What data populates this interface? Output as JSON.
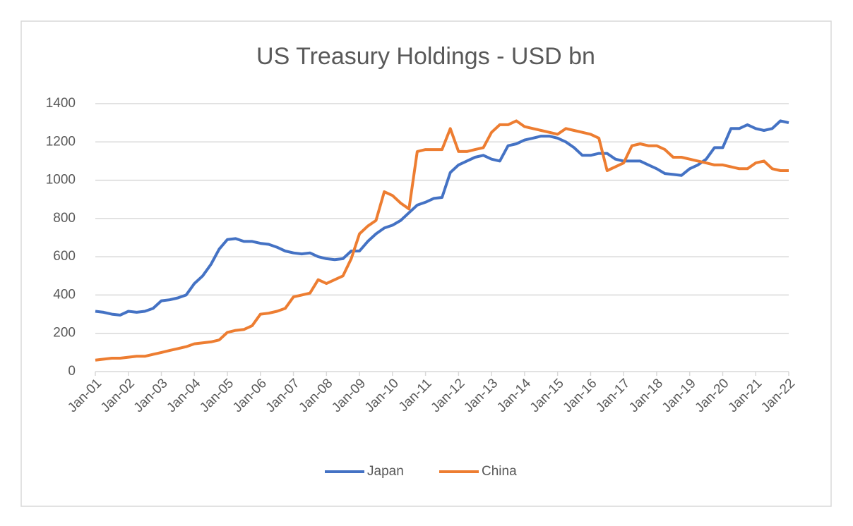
{
  "chart_data": {
    "type": "line",
    "title": "US Treasury Holdings - USD bn",
    "x": [
      "2001-01",
      "2001-04",
      "2001-07",
      "2001-10",
      "2002-01",
      "2002-04",
      "2002-07",
      "2002-10",
      "2003-01",
      "2003-04",
      "2003-07",
      "2003-10",
      "2004-01",
      "2004-04",
      "2004-07",
      "2004-10",
      "2005-01",
      "2005-04",
      "2005-07",
      "2005-10",
      "2006-01",
      "2006-04",
      "2006-07",
      "2006-10",
      "2007-01",
      "2007-04",
      "2007-07",
      "2007-10",
      "2008-01",
      "2008-04",
      "2008-07",
      "2008-10",
      "2009-01",
      "2009-04",
      "2009-07",
      "2009-10",
      "2010-01",
      "2010-04",
      "2010-07",
      "2010-10",
      "2011-01",
      "2011-04",
      "2011-07",
      "2011-10",
      "2012-01",
      "2012-04",
      "2012-07",
      "2012-10",
      "2013-01",
      "2013-04",
      "2013-07",
      "2013-10",
      "2014-01",
      "2014-04",
      "2014-07",
      "2014-10",
      "2015-01",
      "2015-04",
      "2015-07",
      "2015-10",
      "2016-01",
      "2016-04",
      "2016-07",
      "2016-10",
      "2017-01",
      "2017-04",
      "2017-07",
      "2017-10",
      "2018-01",
      "2018-04",
      "2018-07",
      "2018-10",
      "2019-01",
      "2019-04",
      "2019-07",
      "2019-10",
      "2020-01",
      "2020-04",
      "2020-07",
      "2020-10",
      "2021-01",
      "2021-04",
      "2021-07",
      "2021-10",
      "2022-01"
    ],
    "series": [
      {
        "name": "Japan",
        "color": "#4472c4",
        "values": [
          315,
          310,
          300,
          295,
          315,
          310,
          315,
          330,
          370,
          375,
          385,
          400,
          460,
          500,
          560,
          640,
          690,
          695,
          680,
          680,
          670,
          665,
          650,
          630,
          620,
          615,
          620,
          600,
          590,
          585,
          590,
          630,
          630,
          680,
          720,
          750,
          765,
          790,
          830,
          870,
          885,
          905,
          910,
          1040,
          1080,
          1100,
          1120,
          1130,
          1110,
          1100,
          1180,
          1190,
          1210,
          1220,
          1230,
          1230,
          1220,
          1200,
          1170,
          1130,
          1130,
          1140,
          1140,
          1110,
          1100,
          1100,
          1100,
          1080,
          1060,
          1035,
          1030,
          1025,
          1060,
          1080,
          1110,
          1170,
          1170,
          1270,
          1270,
          1290,
          1270,
          1260,
          1270,
          1310,
          1300
        ]
      },
      {
        "name": "China",
        "color": "#ed7d31",
        "values": [
          60,
          65,
          70,
          70,
          75,
          80,
          80,
          90,
          100,
          110,
          120,
          130,
          145,
          150,
          155,
          165,
          205,
          215,
          220,
          240,
          300,
          305,
          315,
          330,
          390,
          400,
          410,
          480,
          460,
          480,
          500,
          590,
          720,
          760,
          790,
          940,
          920,
          880,
          850,
          1150,
          1160,
          1160,
          1160,
          1270,
          1150,
          1150,
          1160,
          1170,
          1250,
          1290,
          1290,
          1310,
          1280,
          1270,
          1260,
          1250,
          1240,
          1270,
          1260,
          1250,
          1240,
          1220,
          1050,
          1070,
          1090,
          1180,
          1190,
          1180,
          1180,
          1160,
          1120,
          1120,
          1110,
          1100,
          1090,
          1080,
          1080,
          1070,
          1060,
          1060,
          1090,
          1100,
          1060,
          1050,
          1050
        ]
      }
    ],
    "ylim": [
      0,
      1400
    ],
    "yticks": [
      0,
      200,
      400,
      600,
      800,
      1000,
      1200,
      1400
    ],
    "grid": true,
    "xlim": [
      "2001-01",
      "2022-01"
    ],
    "xticks": [
      {
        "value": "2001-01",
        "label": "Jan-01"
      },
      {
        "value": "2002-01",
        "label": "Jan-02"
      },
      {
        "value": "2003-01",
        "label": "Jan-03"
      },
      {
        "value": "2004-01",
        "label": "Jan-04"
      },
      {
        "value": "2005-01",
        "label": "Jan-05"
      },
      {
        "value": "2006-01",
        "label": "Jan-06"
      },
      {
        "value": "2007-01",
        "label": "Jan-07"
      },
      {
        "value": "2008-01",
        "label": "Jan-08"
      },
      {
        "value": "2009-01",
        "label": "Jan-09"
      },
      {
        "value": "2010-01",
        "label": "Jan-10"
      },
      {
        "value": "2011-01",
        "label": "Jan-11"
      },
      {
        "value": "2012-01",
        "label": "Jan-12"
      },
      {
        "value": "2013-01",
        "label": "Jan-13"
      },
      {
        "value": "2014-01",
        "label": "Jan-14"
      },
      {
        "value": "2015-01",
        "label": "Jan-15"
      },
      {
        "value": "2016-01",
        "label": "Jan-16"
      },
      {
        "value": "2017-01",
        "label": "Jan-17"
      },
      {
        "value": "2018-01",
        "label": "Jan-18"
      },
      {
        "value": "2019-01",
        "label": "Jan-19"
      },
      {
        "value": "2020-01",
        "label": "Jan-20"
      },
      {
        "value": "2021-01",
        "label": "Jan-21"
      },
      {
        "value": "2022-01",
        "label": "Jan-22"
      }
    ],
    "legend": "bottom"
  }
}
